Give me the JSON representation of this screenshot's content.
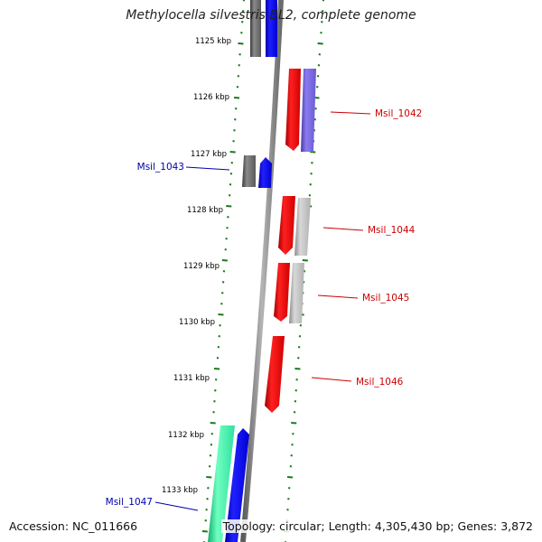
{
  "title": "Methylocella silvestris BL2, complete genome",
  "footer": {
    "accession": "Accession: NC_011666",
    "topology": "Topology: circular; Length: 4,305,430 bp; Genes: 3,872"
  },
  "colors": {
    "backbone": "#8a8a8a",
    "tick": "#1a7a1a",
    "forward_label": "#0000aa",
    "reverse_label": "#cc0000",
    "red_gene": "#ff0000",
    "blue_gene": "#0000ff",
    "purple_gene": "#7060d8",
    "gray_gene": "#a8a8a8",
    "darkgray_gene": "#6a6a6a",
    "green_gene": "#30f0a0"
  },
  "ruler": [
    "1125 kbp",
    "1126 kbp",
    "1127 kbp",
    "1128 kbp",
    "1129 kbp",
    "1130 kbp",
    "1131 kbp",
    "1132 kbp",
    "1133 kbp"
  ],
  "gene_labels": [
    {
      "name": "Msil_1042",
      "strand": "reverse"
    },
    {
      "name": "Msil_1043",
      "strand": "forward"
    },
    {
      "name": "Msil_1044",
      "strand": "reverse"
    },
    {
      "name": "Msil_1045",
      "strand": "reverse"
    },
    {
      "name": "Msil_1046",
      "strand": "reverse"
    },
    {
      "name": "Msil_1047",
      "strand": "forward"
    }
  ]
}
